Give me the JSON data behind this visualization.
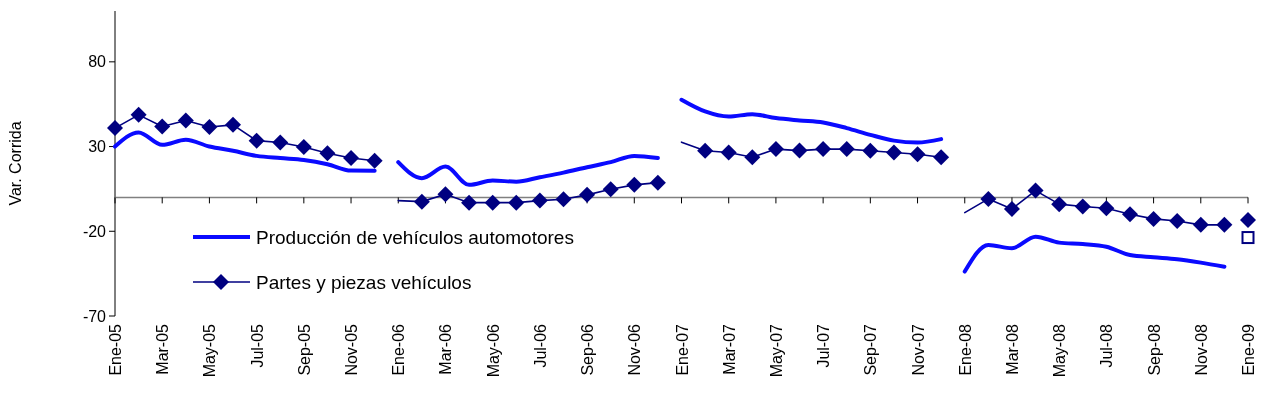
{
  "chart_data": {
    "type": "line",
    "ylabel": "Var. Corrida",
    "categories": [
      "Ene-05",
      null,
      "Mar-05",
      null,
      "May-05",
      null,
      "Jul-05",
      null,
      "Sep-05",
      null,
      "Nov-05",
      null,
      "Ene-06",
      null,
      "Mar-06",
      null,
      "May-06",
      null,
      "Jul-06",
      null,
      "Sep-06",
      null,
      "Nov-06",
      null,
      "Ene-07",
      null,
      "Mar-07",
      null,
      "May-07",
      null,
      "Jul-07",
      null,
      "Sep-07",
      null,
      "Nov-07",
      null,
      "Ene-08",
      null,
      "Mar-08",
      null,
      "May-08",
      null,
      "Jul-08",
      null,
      "Sep-08",
      null,
      "Nov-08",
      null,
      "Ene-09"
    ],
    "ylim": [
      -70,
      110
    ],
    "yticks": [
      -70,
      -20,
      30,
      80
    ],
    "grid": false,
    "legend": "bottom left",
    "series": [
      {
        "name": "Producción de vehículos automotores",
        "color": "#0a0aff",
        "type": "line",
        "marker": "none",
        "values": [
          30.0,
          38.3,
          31.0,
          34.0,
          30.0,
          27.5,
          24.5,
          23.2,
          22.1,
          19.6,
          15.8,
          15.7,
          null,
          null,
          null,
          null,
          null,
          null,
          null,
          null,
          null,
          null,
          null,
          null,
          null,
          null,
          null,
          null,
          null,
          null,
          null,
          null,
          null,
          null,
          null,
          null,
          null,
          null,
          null,
          null,
          null,
          null,
          null,
          null,
          null,
          null,
          null,
          null,
          null
        ]
      },
      {
        "color": "#0a0aff",
        "type": "line",
        "marker": "none",
        "values": [
          null,
          null,
          null,
          null,
          null,
          null,
          null,
          null,
          null,
          null,
          null,
          null,
          20.8,
          11.3,
          18.2,
          7.4,
          9.9,
          9.3,
          11.9,
          14.6,
          17.8,
          20.8,
          24.5,
          23.2,
          null,
          null,
          null,
          null,
          null,
          null,
          null,
          null,
          null,
          null,
          null,
          null,
          null,
          null,
          null,
          null,
          null,
          null,
          null,
          null,
          null,
          null,
          null,
          null,
          null
        ]
      },
      {
        "color": "#0a0aff",
        "type": "line",
        "marker": "none",
        "values": [
          null,
          null,
          null,
          null,
          null,
          null,
          null,
          null,
          null,
          null,
          null,
          null,
          null,
          null,
          null,
          null,
          null,
          null,
          null,
          null,
          null,
          null,
          null,
          null,
          57.6,
          50.7,
          47.7,
          49.1,
          46.8,
          45.4,
          44.2,
          40.9,
          36.9,
          33.5,
          32.4,
          34.4,
          null,
          null,
          null,
          null,
          null,
          null,
          null,
          null,
          null,
          null,
          null,
          null,
          null
        ]
      },
      {
        "color": "#0a0aff",
        "type": "line",
        "marker": "none",
        "values": [
          null,
          null,
          null,
          null,
          null,
          null,
          null,
          null,
          null,
          null,
          null,
          null,
          null,
          null,
          null,
          null,
          null,
          null,
          null,
          null,
          null,
          null,
          null,
          null,
          null,
          null,
          null,
          null,
          null,
          null,
          null,
          null,
          null,
          null,
          null,
          null,
          -43.8,
          -28.1,
          -30.0,
          -23.2,
          -26.7,
          -27.5,
          -29.1,
          -34.0,
          -35.3,
          -36.5,
          -38.5,
          -40.9,
          null
        ]
      },
      {
        "color": "#000080",
        "type": "scatter",
        "marker": "square",
        "values": [
          null,
          null,
          null,
          null,
          null,
          null,
          null,
          null,
          null,
          null,
          null,
          null,
          null,
          null,
          null,
          null,
          null,
          null,
          null,
          null,
          null,
          null,
          null,
          null,
          null,
          null,
          null,
          null,
          null,
          null,
          null,
          null,
          null,
          null,
          null,
          null,
          null,
          null,
          null,
          null,
          null,
          null,
          null,
          null,
          null,
          null,
          null,
          null,
          -23.7
        ]
      },
      {
        "name": "Partes y piezas vehículos",
        "color": "#000080",
        "type": "line",
        "marker": "diamond",
        "values": [
          40.9,
          48.7,
          41.8,
          45.4,
          41.5,
          42.8,
          33.5,
          32.4,
          29.7,
          26.1,
          23.2,
          21.6,
          null,
          null,
          null,
          null,
          null,
          null,
          null,
          null,
          null,
          null,
          null,
          null,
          null,
          null,
          null,
          null,
          null,
          null,
          null,
          null,
          null,
          null,
          null,
          null,
          null,
          null,
          null,
          null,
          null,
          null,
          null,
          null,
          null,
          null,
          null,
          null,
          null
        ]
      },
      {
        "color": "#000080",
        "values": [
          null,
          null,
          null,
          null,
          null,
          null,
          null,
          null,
          null,
          null,
          null,
          null,
          -1.9,
          -2.5,
          null,
          null,
          null,
          null,
          null,
          null,
          null,
          null,
          null,
          null,
          null,
          null,
          null,
          null,
          null,
          null,
          null,
          null,
          null,
          null,
          null,
          null,
          null,
          null,
          null,
          null,
          null,
          null,
          null,
          null,
          null,
          null,
          null,
          null,
          null
        ]
      },
      {
        "color": "#000080",
        "type": "line",
        "marker": "diamond",
        "values": [
          null,
          null,
          null,
          null,
          null,
          null,
          null,
          null,
          null,
          null,
          null,
          null,
          null,
          -2.5,
          1.9,
          -3.1,
          -3.1,
          -3.1,
          -1.9,
          -1.1,
          1.5,
          4.8,
          7.4,
          8.7,
          null,
          null,
          null,
          null,
          null,
          null,
          null,
          null,
          null,
          null,
          null,
          null,
          null,
          null,
          null,
          null,
          null,
          null,
          null,
          null,
          null,
          null,
          null,
          null,
          null
        ]
      },
      {
        "color": "#000080",
        "values": [
          null,
          null,
          null,
          null,
          null,
          null,
          null,
          null,
          null,
          null,
          null,
          null,
          null,
          null,
          null,
          null,
          null,
          null,
          null,
          null,
          null,
          null,
          null,
          null,
          32.6,
          27.5,
          null,
          null,
          null,
          null,
          null,
          null,
          null,
          null,
          null,
          null,
          null,
          null,
          null,
          null,
          null,
          null,
          null,
          null,
          null,
          null,
          null,
          null,
          null
        ]
      },
      {
        "color": "#000080",
        "type": "line",
        "marker": "diamond",
        "values": [
          null,
          null,
          null,
          null,
          null,
          null,
          null,
          null,
          null,
          null,
          null,
          null,
          null,
          null,
          null,
          null,
          null,
          null,
          null,
          null,
          null,
          null,
          null,
          null,
          null,
          27.5,
          26.5,
          23.7,
          28.5,
          27.6,
          28.5,
          28.5,
          27.5,
          26.5,
          25.5,
          23.7,
          null,
          null,
          null,
          null,
          null,
          null,
          null,
          null,
          null,
          null,
          null,
          null,
          null
        ]
      },
      {
        "color": "#000080",
        "values": [
          null,
          null,
          null,
          null,
          null,
          null,
          null,
          null,
          null,
          null,
          null,
          null,
          null,
          null,
          null,
          null,
          null,
          null,
          null,
          null,
          null,
          null,
          null,
          null,
          null,
          null,
          null,
          null,
          null,
          null,
          null,
          null,
          null,
          null,
          null,
          null,
          -9.0,
          -0.9,
          null,
          null,
          null,
          null,
          null,
          null,
          null,
          null,
          null,
          null,
          null
        ]
      },
      {
        "color": "#000080",
        "type": "line",
        "marker": "diamond",
        "values": [
          null,
          null,
          null,
          null,
          null,
          null,
          null,
          null,
          null,
          null,
          null,
          null,
          null,
          null,
          null,
          null,
          null,
          null,
          null,
          null,
          null,
          null,
          null,
          null,
          null,
          null,
          null,
          null,
          null,
          null,
          null,
          null,
          null,
          null,
          null,
          null,
          null,
          -0.9,
          -6.8,
          4.0,
          -4.0,
          -5.4,
          -6.4,
          -9.9,
          -12.7,
          -13.9,
          -16.2,
          -16.2,
          null
        ]
      },
      {
        "color": "#000080",
        "type": "scatter",
        "marker": "diamond",
        "values": [
          null,
          null,
          null,
          null,
          null,
          null,
          null,
          null,
          null,
          null,
          null,
          null,
          null,
          null,
          null,
          null,
          null,
          null,
          null,
          null,
          null,
          null,
          null,
          null,
          null,
          null,
          null,
          null,
          null,
          null,
          null,
          null,
          null,
          null,
          null,
          null,
          null,
          null,
          null,
          null,
          null,
          null,
          null,
          null,
          null,
          null,
          null,
          null,
          -13.3
        ]
      }
    ]
  }
}
